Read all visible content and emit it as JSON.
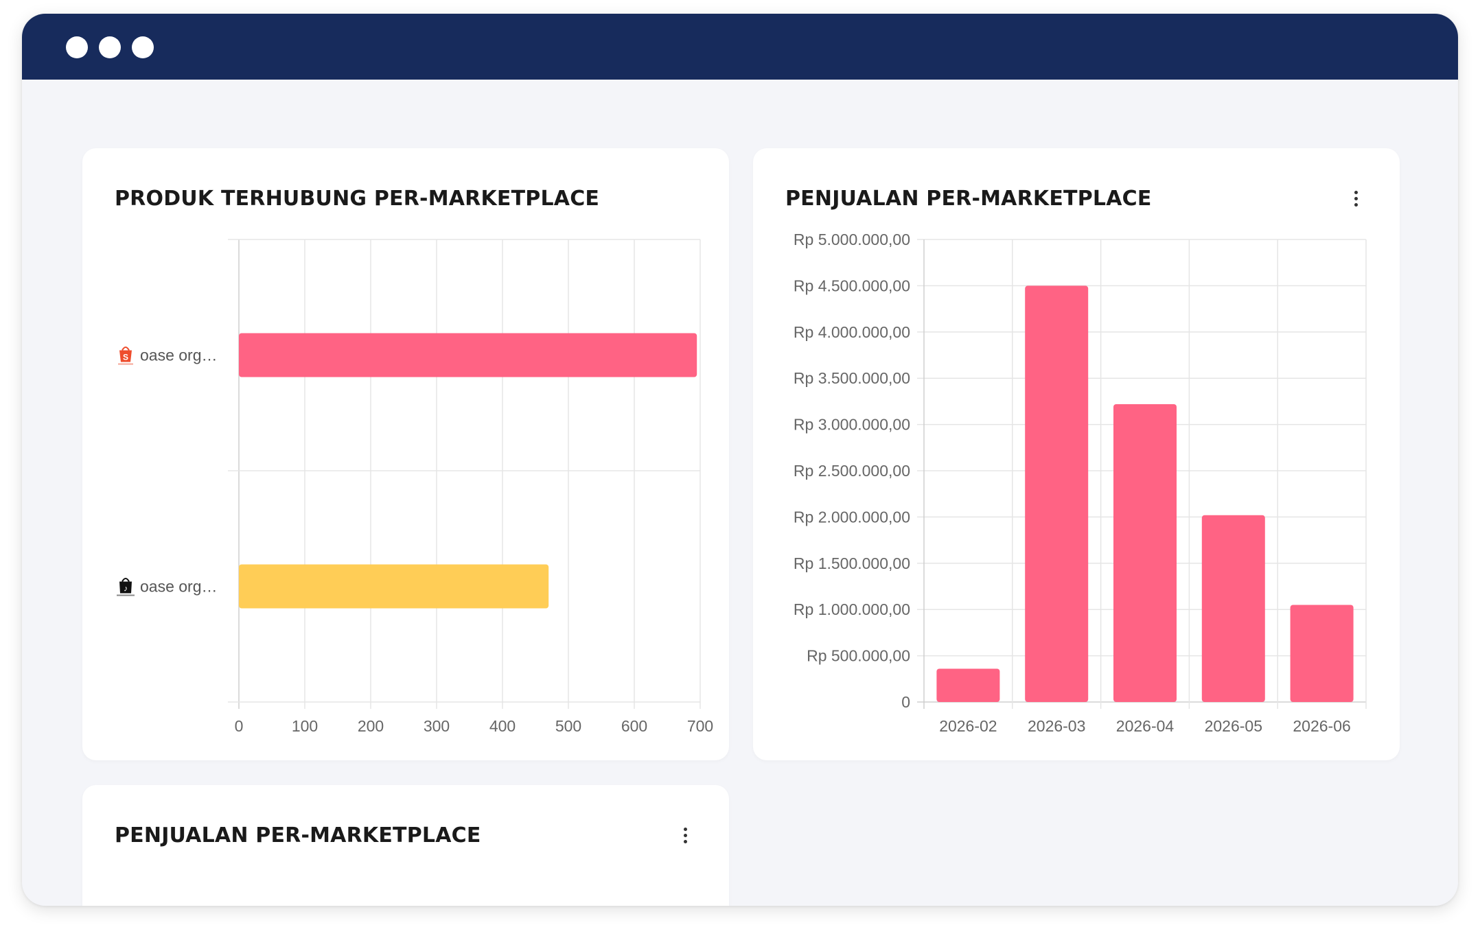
{
  "window": {
    "controls": [
      "close-dot",
      "minimize-dot",
      "maximize-dot"
    ]
  },
  "cards": {
    "produk": {
      "title": "PRODUK TERHUBUNG PER-MARKETPLACE"
    },
    "penjualan_bar": {
      "title": "PENJUALAN PER-MARKETPLACE",
      "menu_icon": "kebab-menu-icon"
    },
    "penjualan_bottom": {
      "title": "PENJUALAN PER-MARKETPLACE",
      "menu_icon": "kebab-menu-icon"
    }
  },
  "colors": {
    "titlebar": "#172b5c",
    "pink": "#ff6384",
    "yellow": "#ffcd56",
    "grid": "#e5e5e5",
    "tick_text": "#666666"
  },
  "chart_data": [
    {
      "type": "bar",
      "orientation": "horizontal",
      "title": "PRODUK TERHUBUNG PER-MARKETPLACE",
      "categories": [
        "oase org…",
        "oase org…"
      ],
      "category_icons": [
        "shopee-icon",
        "tiktok-shop-icon"
      ],
      "values": [
        695,
        470
      ],
      "bar_colors": [
        "#ff6384",
        "#ffcd56"
      ],
      "xlim": [
        0,
        700
      ],
      "xticks": [
        "0",
        "100",
        "200",
        "300",
        "400",
        "500",
        "600",
        "700"
      ],
      "grid": true,
      "legend": "none"
    },
    {
      "type": "bar",
      "orientation": "vertical",
      "title": "PENJUALAN PER-MARKETPLACE",
      "categories": [
        "2026-02",
        "2026-03",
        "2026-04",
        "2026-05",
        "2026-06"
      ],
      "values": [
        360000,
        4500000,
        3220000,
        2020000,
        1050000
      ],
      "bar_color": "#ff6384",
      "ylim": [
        0,
        5000000
      ],
      "yticks": [
        "0",
        "Rp 500.000,00",
        "Rp 1.000.000,00",
        "Rp 1.500.000,00",
        "Rp 2.000.000,00",
        "Rp 2.500.000,00",
        "Rp 3.000.000,00",
        "Rp 3.500.000,00",
        "Rp 4.000.000,00",
        "Rp 4.500.000,00",
        "Rp 5.000.000,00"
      ],
      "grid": true,
      "legend": "none"
    }
  ]
}
